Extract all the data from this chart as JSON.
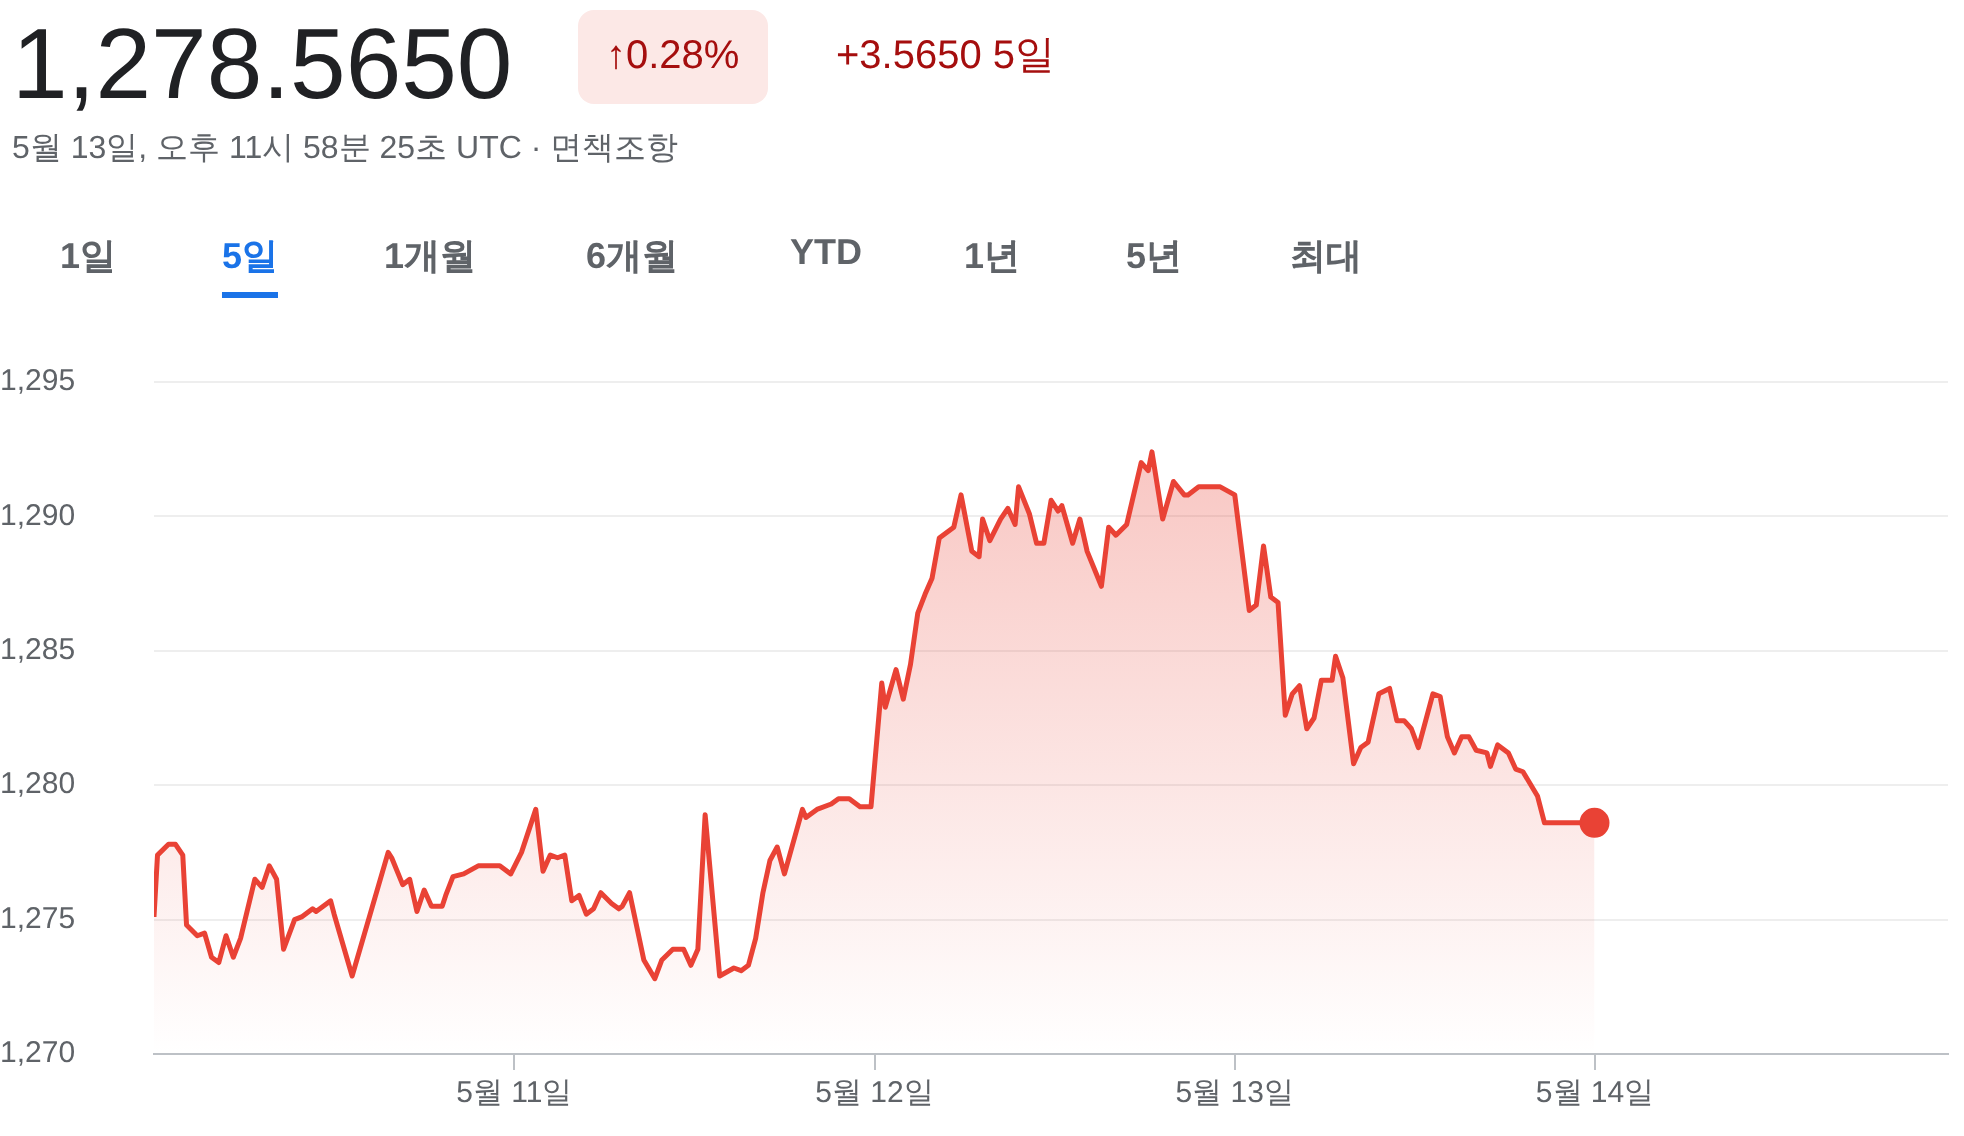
{
  "chart_data": {
    "type": "area",
    "title": "1,278.5650",
    "subtitle": "5월 13일, 오후 11시 58분 25초 UTC · 면책조항",
    "annotations": [
      "↑0.28%",
      "+3.5650 5일",
      "1일",
      "5일",
      "1개월",
      "6개월",
      "YTD",
      "1년",
      "5년",
      "최대"
    ],
    "xlim": [
      "--05-10",
      "--05-14T23:31"
    ],
    "xticks": [
      {
        "value": "--05-11",
        "label": "5월 11일"
      },
      {
        "value": "--05-12",
        "label": "5월 12일"
      },
      {
        "value": "--05-13",
        "label": "5월 13일"
      },
      {
        "value": "--05-14",
        "label": "5월 14일"
      }
    ],
    "ylim": [
      1270,
      1295
    ],
    "yticks": [
      {
        "value": 1270,
        "label": "1,270"
      },
      {
        "value": 1275,
        "label": "1,275"
      },
      {
        "value": 1280,
        "label": "1,280"
      },
      {
        "value": 1285,
        "label": "1,285"
      },
      {
        "value": 1290,
        "label": "1,290"
      },
      {
        "value": 1295,
        "label": "1,295"
      }
    ],
    "grid": "y",
    "series": [
      {
        "color": "#e94235",
        "x": [
          "--05-10T00:00",
          "--05-10T00:14",
          "--05-10T00:58",
          "--05-10T01:26",
          "--05-10T01:55",
          "--05-10T02:10",
          "--05-10T02:53",
          "--05-10T03:22",
          "--05-10T03:50",
          "--05-10T04:19",
          "--05-10T04:48",
          "--05-10T05:17",
          "--05-10T05:46",
          "--05-10T06:43",
          "--05-10T07:12",
          "--05-10T07:41",
          "--05-10T08:10",
          "--05-10T08:38",
          "--05-10T09:22",
          "--05-10T09:50",
          "--05-10T10:34",
          "--05-10T10:48",
          "--05-10T11:46",
          "--05-10T12:00",
          "--05-10T13:12",
          "--05-10T15:36",
          "--05-10T15:50",
          "--05-10T16:34",
          "--05-10T17:02",
          "--05-10T17:31",
          "--05-10T18:00",
          "--05-10T18:29",
          "--05-10T19:12",
          "--05-10T19:26",
          "--05-10T19:55",
          "--05-10T20:38",
          "--05-10T21:36",
          "--05-10T23:02",
          "--05-10T23:46",
          "--05-11T00:29",
          "--05-11T01:26",
          "--05-11T01:55",
          "--05-11T02:24",
          "--05-11T02:53",
          "--05-11T03:22",
          "--05-11T03:50",
          "--05-11T04:19",
          "--05-11T04:48",
          "--05-11T05:17",
          "--05-11T05:46",
          "--05-11T06:29",
          "--05-11T06:58",
          "--05-11T07:12",
          "--05-11T07:41",
          "--05-11T08:38",
          "--05-11T09:22",
          "--05-11T09:50",
          "--05-11T10:34",
          "--05-11T11:17",
          "--05-11T11:46",
          "--05-11T12:14",
          "--05-11T12:43",
          "--05-11T13:41",
          "--05-11T14:38",
          "--05-11T15:07",
          "--05-11T15:36",
          "--05-11T16:05",
          "--05-11T16:34",
          "--05-11T17:02",
          "--05-11T17:31",
          "--05-11T18:00",
          "--05-11T19:12",
          "--05-11T19:26",
          "--05-11T20:10",
          "--05-11T21:07",
          "--05-11T21:36",
          "--05-11T22:19",
          "--05-11T23:02",
          "--05-11T23:46",
          "--05-12T00:29",
          "--05-12T00:43",
          "--05-12T01:26",
          "--05-12T01:55",
          "--05-12T02:24",
          "--05-12T02:53",
          "--05-12T03:22",
          "--05-12T03:50",
          "--05-12T04:19",
          "--05-12T05:17",
          "--05-12T05:46",
          "--05-12T06:29",
          "--05-12T06:58",
          "--05-12T07:12",
          "--05-12T07:41",
          "--05-12T08:24",
          "--05-12T08:53",
          "--05-12T09:22",
          "--05-12T09:36",
          "--05-12T10:19",
          "--05-12T10:48",
          "--05-12T11:17",
          "--05-12T11:46",
          "--05-12T12:14",
          "--05-12T12:29",
          "--05-12T13:12",
          "--05-12T13:41",
          "--05-12T14:10",
          "--05-12T15:07",
          "--05-12T15:36",
          "--05-12T16:05",
          "--05-12T16:48",
          "--05-12T17:46",
          "--05-12T18:14",
          "--05-12T18:29",
          "--05-12T19:12",
          "--05-12T19:55",
          "--05-12T20:38",
          "--05-12T20:53",
          "--05-12T21:36",
          "--05-12T23:02",
          "--05-13T00:00",
          "--05-13T00:58",
          "--05-13T01:26",
          "--05-13T01:55",
          "--05-13T02:24",
          "--05-13T02:53",
          "--05-13T03:22",
          "--05-13T03:50",
          "--05-13T04:19",
          "--05-13T04:48",
          "--05-13T05:17",
          "--05-13T05:46",
          "--05-13T06:29",
          "--05-13T06:43",
          "--05-13T07:12",
          "--05-13T07:55",
          "--05-13T08:24",
          "--05-13T08:53",
          "--05-13T09:36",
          "--05-13T10:19",
          "--05-13T10:48",
          "--05-13T11:17",
          "--05-13T11:46",
          "--05-13T12:14",
          "--05-13T13:12",
          "--05-13T13:41",
          "--05-13T14:10",
          "--05-13T14:38",
          "--05-13T15:07",
          "--05-13T15:36",
          "--05-13T16:05",
          "--05-13T16:48",
          "--05-13T17:02",
          "--05-13T17:31",
          "--05-13T18:14",
          "--05-13T18:43",
          "--05-13T19:12",
          "--05-13T20:10",
          "--05-13T20:38",
          "--05-13T23:58"
        ],
        "values": [
          1275.1,
          1277.4,
          1277.8,
          1277.8,
          1277.4,
          1274.8,
          1274.4,
          1274.5,
          1273.6,
          1273.4,
          1274.4,
          1273.6,
          1274.3,
          1276.5,
          1276.2,
          1277.0,
          1276.5,
          1273.9,
          1275.0,
          1275.1,
          1275.4,
          1275.3,
          1275.7,
          1275.2,
          1272.9,
          1277.5,
          1277.3,
          1276.3,
          1276.5,
          1275.3,
          1276.1,
          1275.5,
          1275.5,
          1275.9,
          1276.6,
          1276.7,
          1277.0,
          1277.0,
          1276.7,
          1277.5,
          1279.1,
          1276.8,
          1277.4,
          1277.3,
          1277.4,
          1275.7,
          1275.9,
          1275.2,
          1275.4,
          1276.0,
          1275.6,
          1275.4,
          1275.5,
          1276.0,
          1273.5,
          1272.8,
          1273.5,
          1273.9,
          1273.9,
          1273.3,
          1273.9,
          1278.9,
          1272.9,
          1273.2,
          1273.1,
          1273.3,
          1274.3,
          1276.0,
          1277.2,
          1277.7,
          1276.7,
          1279.1,
          1278.8,
          1279.1,
          1279.3,
          1279.5,
          1279.5,
          1279.2,
          1279.2,
          1283.8,
          1282.9,
          1284.3,
          1283.2,
          1284.5,
          1286.4,
          1287.1,
          1287.7,
          1289.2,
          1289.6,
          1290.8,
          1288.7,
          1288.5,
          1289.9,
          1289.1,
          1289.9,
          1290.3,
          1289.7,
          1291.1,
          1290.1,
          1289.0,
          1289.0,
          1290.6,
          1290.2,
          1290.4,
          1289.0,
          1289.9,
          1288.7,
          1287.4,
          1289.6,
          1289.3,
          1289.7,
          1292.0,
          1291.7,
          1292.4,
          1289.9,
          1291.3,
          1290.8,
          1290.8,
          1291.1,
          1291.1,
          1290.8,
          1286.5,
          1286.7,
          1288.9,
          1287.0,
          1286.8,
          1282.6,
          1283.4,
          1283.7,
          1282.1,
          1282.5,
          1283.9,
          1283.9,
          1284.8,
          1284.0,
          1280.8,
          1281.4,
          1281.6,
          1283.4,
          1283.6,
          1282.4,
          1282.4,
          1282.1,
          1281.4,
          1283.4,
          1283.3,
          1281.8,
          1281.2,
          1281.8,
          1281.8,
          1281.3,
          1281.2,
          1280.7,
          1281.5,
          1281.2,
          1280.6,
          1280.5,
          1279.6,
          1278.6,
          1278.6
        ]
      },
      {
        "type": "scatter",
        "color": "#e94235",
        "marker": "circle",
        "x": [
          "--05-13T23:58"
        ],
        "values": [
          1278.6
        ]
      }
    ]
  }
}
